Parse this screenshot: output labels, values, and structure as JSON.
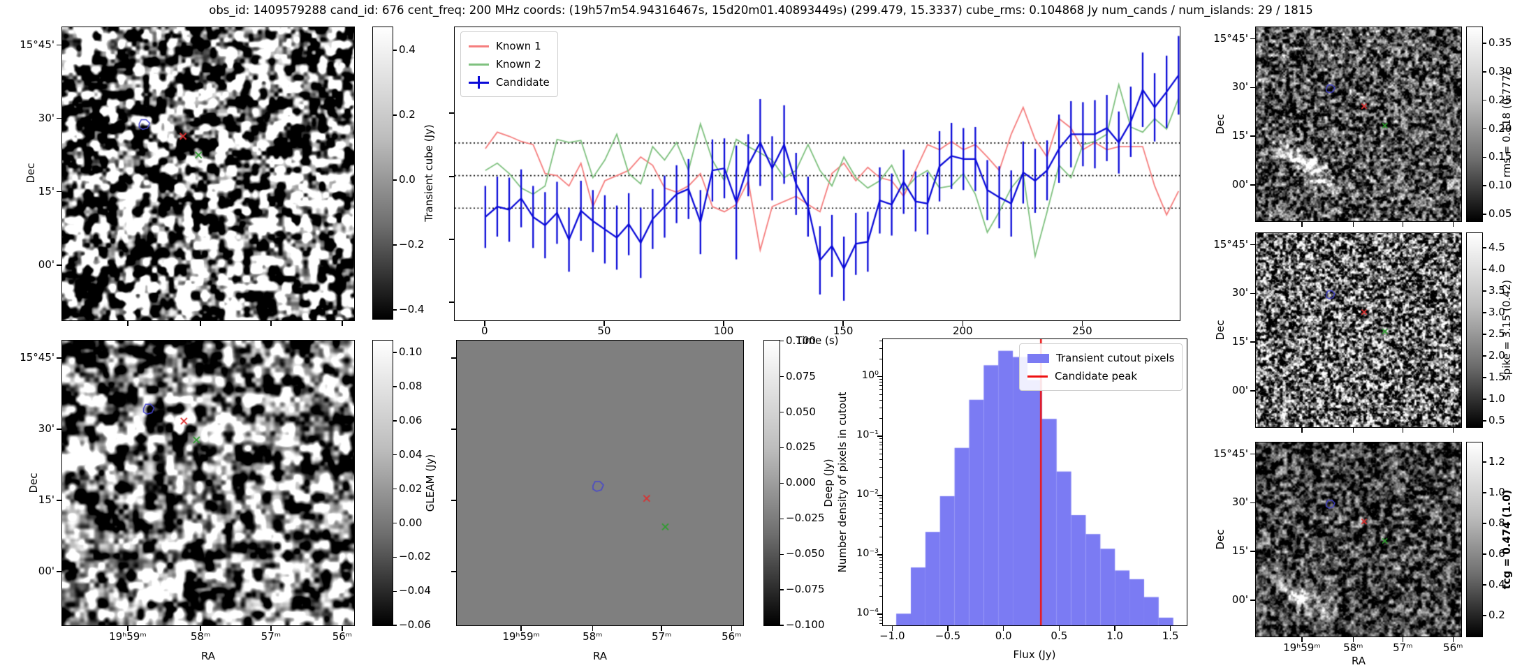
{
  "title": "obs_id: 1409579288 cand_id: 676 cent_freq: 200 MHz coords: (19h57m54.94316467s, 15d20m01.40893449s) (299.479, 15.3337) cube_rms: 0.104868 Jy num_cands / num_islands: 29 / 1815",
  "axes": {
    "dec_label": "Dec",
    "ra_label": "RA",
    "dec_ticks": [
      "15°45'",
      "30'",
      "15'",
      "00'"
    ],
    "ra_ticks": [
      "19ʰ59ᵐ",
      "58ᵐ",
      "57ᵐ",
      "56ᵐ"
    ]
  },
  "colorbars": {
    "transient": {
      "label": "Transient cube (Jy)",
      "ticks": [
        "0.4",
        "0.2",
        "0.0",
        "−0.2",
        "−0.4"
      ]
    },
    "gleam": {
      "label": "GLEAM (Jy)",
      "ticks": [
        "0.10",
        "0.08",
        "0.06",
        "0.04",
        "0.02",
        "0.00",
        "−0.02",
        "−0.04",
        "−0.06"
      ]
    },
    "deep": {
      "label": "Deep (Jy)",
      "ticks": [
        "0.100",
        "0.075",
        "0.050",
        "0.025",
        "0.000",
        "−0.025",
        "−0.050",
        "−0.075",
        "−0.100"
      ]
    },
    "rms": {
      "label": "rms = 0.118 (0.777)",
      "ticks": [
        "0.35",
        "0.30",
        "0.25",
        "0.20",
        "0.15",
        "0.10",
        "0.05"
      ]
    },
    "spike": {
      "label": "spike = 3.15 (0.42)",
      "ticks": [
        "4.5",
        "4.0",
        "3.5",
        "3.0",
        "2.5",
        "2.0",
        "1.5",
        "1.0",
        "0.5"
      ]
    },
    "tcg": {
      "label": "tcg = 0.474 (1.0)",
      "ticks": [
        "1.2",
        "1.0",
        "0.8",
        "0.6",
        "0.4",
        "0.2"
      ],
      "bold": true
    }
  },
  "markers": {
    "sky": {
      "blue": [
        0.283,
        0.332
      ],
      "red": [
        0.414,
        0.372
      ],
      "green": [
        0.467,
        0.436
      ]
    },
    "gleam": {
      "blue": [
        0.298,
        0.241
      ],
      "red": [
        0.417,
        0.283
      ],
      "green": [
        0.46,
        0.349
      ]
    },
    "deep": {
      "blue": [
        0.495,
        0.512
      ],
      "red": [
        0.663,
        0.554
      ],
      "green": [
        0.728,
        0.654
      ]
    },
    "right": {
      "blue": [
        0.365,
        0.318
      ],
      "red": [
        0.527,
        0.407
      ],
      "green": [
        0.628,
        0.507
      ]
    }
  },
  "chart_data": [
    {
      "type": "line",
      "name": "light_curve",
      "xlabel": "Time (s)",
      "xticks": [
        0,
        50,
        100,
        150,
        200,
        250
      ],
      "xlim": [
        -12.8,
        290.5
      ],
      "ylim": [
        -1.4,
        1.435
      ],
      "hlines": [
        0.315,
        0.0,
        -0.315
      ],
      "legend_position": "upper left",
      "x": [
        0,
        5,
        10,
        15,
        20,
        25,
        30,
        35,
        40,
        45,
        50,
        55,
        60,
        65,
        70,
        75,
        80,
        85,
        90,
        95,
        100,
        105,
        110,
        115,
        120,
        125,
        130,
        135,
        140,
        145,
        150,
        155,
        160,
        165,
        170,
        175,
        180,
        185,
        190,
        195,
        200,
        205,
        210,
        215,
        220,
        225,
        230,
        235,
        240,
        245,
        250,
        255,
        260,
        265,
        270,
        275,
        280,
        285,
        290
      ],
      "series": [
        {
          "name": "Known 1",
          "color": "#f57e7e",
          "values": [
            0.26,
            0.42,
            0.38,
            0.33,
            0.3,
            0.02,
            0.0,
            -0.1,
            0.12,
            -0.3,
            -0.05,
            0.0,
            0.05,
            0.18,
            0.1,
            -0.12,
            -0.16,
            -0.1,
            0.02,
            -0.3,
            -0.35,
            -0.28,
            -0.05,
            -0.72,
            -0.3,
            -0.25,
            -0.2,
            -0.28,
            -0.35,
            0.02,
            0.12,
            -0.05,
            0.08,
            -0.02,
            -0.05,
            -0.2,
            0.05,
            0.3,
            0.25,
            0.33,
            0.25,
            0.3,
            0.18,
            0.05,
            0.4,
            0.66,
            0.35,
            0.18,
            0.55,
            0.46,
            0.25,
            0.32,
            0.25,
            0.28,
            0.28,
            0.28,
            -0.1,
            -0.38,
            -0.15
          ]
        },
        {
          "name": "Known 2",
          "color": "#7fc17f",
          "values": [
            0.05,
            0.12,
            0.02,
            -0.12,
            -0.18,
            -0.1,
            0.35,
            0.32,
            0.34,
            -0.02,
            0.15,
            0.4,
            0.02,
            -0.08,
            0.28,
            0.15,
            0.32,
            0.05,
            0.5,
            0.15,
            -0.05,
            0.35,
            0.28,
            0.22,
            0.15,
            -0.02,
            0.05,
            0.3,
            0.05,
            -0.1,
            0.18,
            -0.02,
            -0.12,
            -0.05,
            0.1,
            -0.15,
            -0.02,
            0.05,
            -0.12,
            -0.1,
            0.02,
            -0.18,
            -0.55,
            -0.35,
            -0.12,
            0.02,
            -0.78,
            -0.35,
            0.1,
            -0.02,
            0.3,
            0.33,
            0.4,
            0.88,
            0.47,
            0.42,
            0.55,
            0.45,
            0.75
          ]
        },
        {
          "name": "Candidate",
          "color": "#0a0ad8",
          "values": [
            -0.4,
            -0.3,
            -0.33,
            -0.22,
            -0.4,
            -0.48,
            -0.36,
            -0.62,
            -0.34,
            -0.44,
            -0.52,
            -0.6,
            -0.47,
            -0.65,
            -0.42,
            -0.3,
            -0.18,
            -0.13,
            -0.45,
            0.05,
            0.07,
            -0.26,
            0.1,
            0.32,
            0.07,
            0.3,
            -0.08,
            -0.3,
            -0.82,
            -0.68,
            -0.9,
            -0.66,
            -0.64,
            -0.24,
            -0.28,
            -0.06,
            -0.25,
            -0.27,
            0.09,
            0.19,
            0.16,
            0.16,
            -0.14,
            -0.21,
            -0.27,
            0.03,
            -0.05,
            0.05,
            0.26,
            0.4,
            0.4,
            0.4,
            0.46,
            0.32,
            0.52,
            0.83,
            0.66,
            0.81,
            0.97
          ],
          "errors": [
            0.3,
            0.29,
            0.31,
            0.28,
            0.3,
            0.32,
            0.3,
            0.31,
            0.29,
            0.3,
            0.33,
            0.31,
            0.3,
            0.34,
            0.29,
            0.3,
            0.28,
            0.29,
            0.31,
            0.3,
            0.29,
            0.55,
            0.3,
            0.42,
            0.31,
            0.38,
            0.3,
            0.29,
            0.33,
            0.3,
            0.31,
            0.3,
            0.29,
            0.32,
            0.3,
            0.31,
            0.29,
            0.3,
            0.34,
            0.32,
            0.3,
            0.31,
            0.29,
            0.3,
            0.32,
            0.3,
            0.31,
            0.29,
            0.33,
            0.32,
            0.31,
            0.33,
            0.32,
            0.3,
            0.34,
            0.36,
            0.33,
            0.35,
            0.38
          ]
        }
      ]
    },
    {
      "type": "bar",
      "name": "flux_histogram",
      "xlabel": "Flux (Jy)",
      "ylabel": "Number density of pixels in cutout",
      "yscale": "log",
      "xlim": [
        -1.09,
        1.64
      ],
      "ylim_log_exp": [
        -4.175,
        0.643
      ],
      "xticks": [
        -1.0,
        -0.5,
        0.0,
        0.5,
        1.0,
        1.5
      ],
      "ytick_labels": [
        "10⁰",
        "10⁻¹",
        "10⁻²",
        "10⁻³",
        "10⁻⁴"
      ],
      "ytick_exps": [
        0,
        -1,
        -2,
        -3,
        -4
      ],
      "bin_start": -0.97,
      "bin_width": 0.131,
      "values": [
        0.000105,
        0.00063,
        0.0025,
        0.01,
        0.065,
        0.42,
        1.6,
        2.8,
        2.2,
        0.9,
        0.2,
        0.026,
        0.0048,
        0.0023,
        0.0013,
        0.00056,
        0.0004,
        0.0002,
        9e-05
      ],
      "candidate_peak_x": 0.33,
      "bar_color": "#7b7bf3",
      "peak_color": "#ee1111",
      "legend": [
        {
          "label": "Transient cutout pixels",
          "type": "patch"
        },
        {
          "label": "Candidate peak",
          "type": "line"
        }
      ]
    }
  ]
}
